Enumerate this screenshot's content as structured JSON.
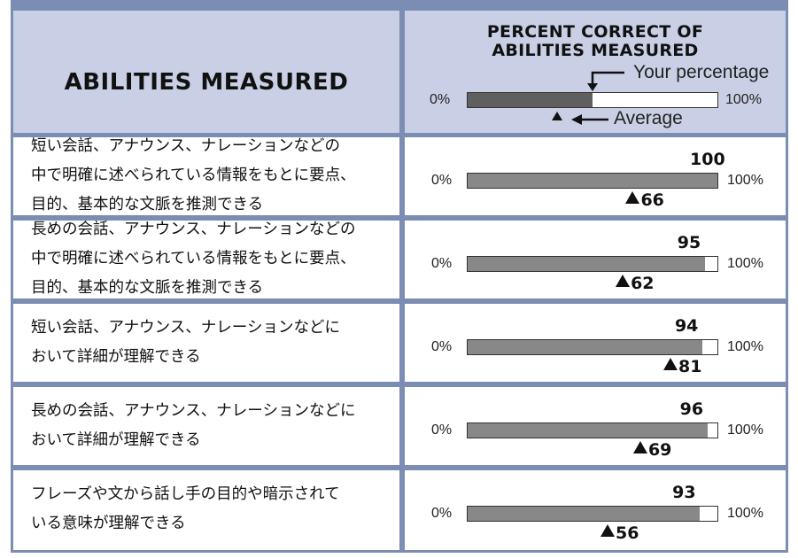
{
  "header": {
    "abilities_title": "ABILITIES MEASURED",
    "percent_title_line1": "PERCENT CORRECT OF",
    "percent_title_line2": "ABILITIES MEASURED",
    "legend_your": "Your percentage",
    "legend_average": "Average",
    "legend_min": "0%",
    "legend_max": "100%",
    "legend_your_value": 50,
    "legend_average_value": 36
  },
  "rows": [
    {
      "lines": [
        "短い会話、アナウンス、ナレーションなどの",
        "中で明確に述べられている情報をもとに要点、",
        "目的、基本的な文脈を推測できる"
      ],
      "value": 100,
      "average": 66
    },
    {
      "lines": [
        "長めの会話、アナウンス、ナレーションなどの",
        "中で明確に述べられている情報をもとに要点、",
        "目的、基本的な文脈を推測できる"
      ],
      "value": 95,
      "average": 62
    },
    {
      "lines": [
        "短い会話、アナウンス、ナレーションなどに",
        "おいて詳細が理解できる"
      ],
      "value": 94,
      "average": 81
    },
    {
      "lines": [
        "長めの会話、アナウンス、ナレーションなどに",
        "おいて詳細が理解できる"
      ],
      "value": 96,
      "average": 69
    },
    {
      "lines": [
        "フレーズや文から話し手の目的や暗示されて",
        "いる意味が理解できる"
      ],
      "value": 93,
      "average": 56
    }
  ],
  "scale": {
    "min_label": "0%",
    "max_label": "100%"
  },
  "colors": {
    "frame": "#7c8db3",
    "header_bg": "#c9d0e6",
    "bar_fill": "#888888",
    "legend_fill": "#5f5f5f"
  }
}
